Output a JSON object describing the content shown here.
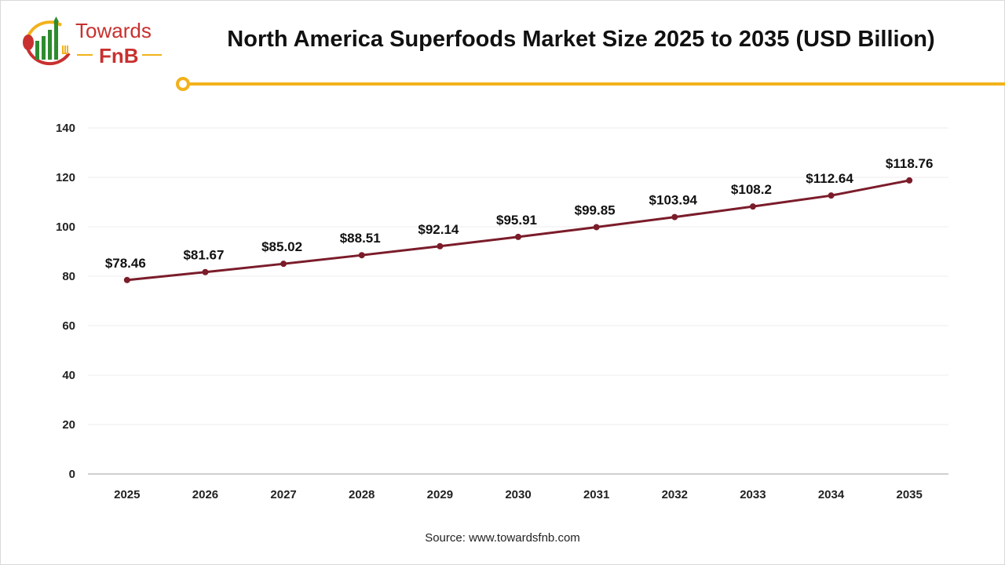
{
  "brand": {
    "name_line1": "Towards",
    "name_line2": "FnB",
    "accent_color": "#f2b21b",
    "brand_red": "#c8312f",
    "brand_green": "#2e8b2e"
  },
  "header": {
    "title": "North America Superfoods Market Size 2025 to 2035 (USD Billion)"
  },
  "footer": {
    "source": "Source: www.towardsfnb.com"
  },
  "chart_data": {
    "type": "line",
    "title": "North America Superfoods Market Size 2025 to 2035 (USD Billion)",
    "xlabel": "",
    "ylabel": "",
    "categories": [
      "2025",
      "2026",
      "2027",
      "2028",
      "2029",
      "2030",
      "2031",
      "2032",
      "2033",
      "2034",
      "2035"
    ],
    "series": [
      {
        "values": [
          78.46,
          81.67,
          85.02,
          88.51,
          92.14,
          95.91,
          99.85,
          103.94,
          108.2,
          112.64,
          118.76
        ],
        "color": "#7b1c2a"
      }
    ],
    "data_labels": [
      "$78.46",
      "$81.67",
      "$85.02",
      "$88.51",
      "$92.14",
      "$95.91",
      "$99.85",
      "$103.94",
      "$108.2",
      "$112.64",
      "$118.76"
    ],
    "ylim": [
      0,
      140
    ],
    "yticks": [
      "0",
      "20",
      "40",
      "60",
      "80",
      "100",
      "120",
      "140"
    ],
    "grid": true,
    "legend": "none"
  }
}
